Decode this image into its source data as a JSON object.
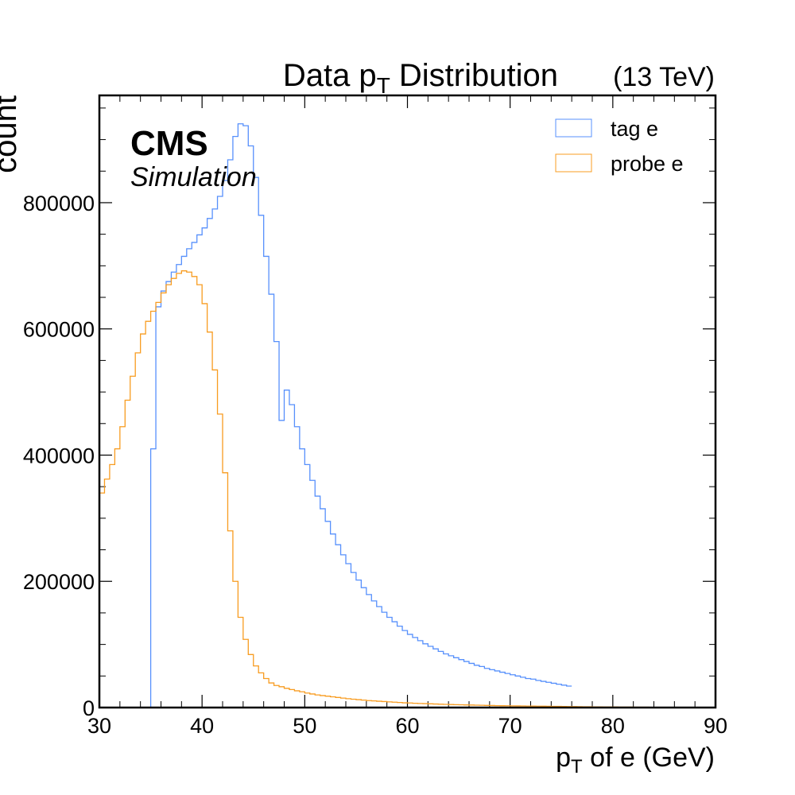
{
  "chart_data": {
    "type": "histogram",
    "title_main": "Data p",
    "title_sub": "T",
    "title_rest": " Distribution",
    "energy_label": "(13 TeV)",
    "experiment_label": "CMS",
    "status_label": "Simulation",
    "xlabel_main": "p",
    "xlabel_sub": "T",
    "xlabel_rest": " of e (GeV)",
    "ylabel": "count",
    "xlim": [
      30,
      90
    ],
    "ylim": [
      0,
      970000
    ],
    "xticks": [
      30,
      40,
      50,
      60,
      70,
      80,
      90
    ],
    "yticks": [
      0,
      200000,
      400000,
      600000,
      800000
    ],
    "yticklabels": [
      "0",
      "200000",
      "400000",
      "600000",
      "800000"
    ],
    "bin_width": 0.5,
    "legend_position": "top-right",
    "series": [
      {
        "name": "tag e",
        "color": "#5790fc",
        "x_start": 30,
        "values": [
          0,
          0,
          0,
          0,
          0,
          0,
          0,
          0,
          0,
          0,
          410000,
          635000,
          660000,
          675000,
          690000,
          702000,
          715000,
          727000,
          737000,
          749000,
          760000,
          775000,
          790000,
          810000,
          835000,
          868000,
          905000,
          925000,
          922000,
          890000,
          840000,
          780000,
          715000,
          655000,
          580000,
          455000,
          503000,
          480000,
          445000,
          410000,
          385000,
          360000,
          335000,
          315000,
          295000,
          275000,
          258000,
          242000,
          228000,
          214000,
          202000,
          190000,
          179000,
          169000,
          160000,
          151000,
          143000,
          136000,
          129000,
          122000,
          116000,
          111000,
          106000,
          101000,
          97000,
          93000,
          89000,
          85000,
          82000,
          79000,
          76000,
          73000,
          70000,
          67000,
          65000,
          62000,
          60000,
          58000,
          56000,
          54000,
          52000,
          50000,
          48000,
          46000,
          45000,
          43000,
          41500,
          40000,
          38500,
          37000,
          35500,
          34000
        ]
      },
      {
        "name": "probe e",
        "color": "#f89c20",
        "x_start": 30,
        "values": [
          340000,
          362000,
          385000,
          410000,
          445000,
          487000,
          525000,
          562000,
          592000,
          612000,
          628000,
          642000,
          657000,
          670000,
          680000,
          688000,
          692000,
          690000,
          683000,
          670000,
          640000,
          595000,
          535000,
          465000,
          372000,
          280000,
          200000,
          143000,
          108000,
          84000,
          66000,
          55000,
          46000,
          39000,
          35000,
          33000,
          30500,
          28500,
          26500,
          25000,
          23000,
          21500,
          20000,
          19000,
          18000,
          17000,
          16000,
          15000,
          14000,
          13200,
          12500,
          11800,
          11000,
          10500,
          10000,
          9500,
          9000,
          8500,
          8000,
          7500,
          7200,
          6800,
          6500,
          6200,
          5900,
          5600,
          5300,
          5000,
          4800,
          4600,
          4400,
          4200,
          4000,
          3800,
          3600,
          3400,
          3200,
          3000,
          2900,
          2800,
          2700,
          2600,
          2500,
          2400,
          2300,
          2200,
          2100,
          2000,
          1900,
          1800,
          1700,
          1600,
          1500,
          1400,
          1300,
          1200,
          1100,
          1000,
          950,
          900,
          850,
          800,
          750,
          700,
          650,
          600,
          550,
          500,
          450,
          400,
          350,
          300,
          250,
          200,
          150,
          100,
          80,
          60,
          40,
          20
        ]
      }
    ]
  }
}
